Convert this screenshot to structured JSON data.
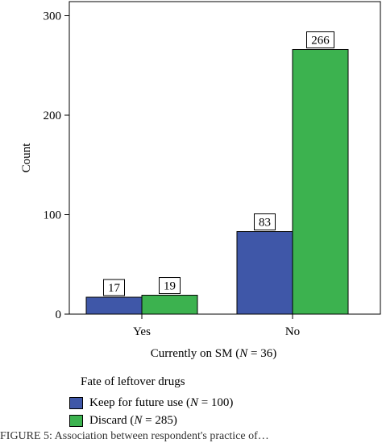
{
  "chart_data": {
    "type": "bar",
    "categories": [
      "Yes",
      "No"
    ],
    "series": [
      {
        "name": "Keep for future use (N = 100)",
        "label_main": "Keep for future use (",
        "label_n": "N",
        "label_rest": " = 100)",
        "values": [
          17,
          83
        ],
        "color": "#3f57a8"
      },
      {
        "name": "Discard (N = 285)",
        "label_main": "Discard (",
        "label_n": "N",
        "label_rest": " = 285)",
        "values": [
          19,
          266
        ],
        "color": "#3cb24f"
      }
    ],
    "xlabel_main": "Currently on SM (",
    "xlabel_n": "N",
    "xlabel_rest": " = 36)",
    "ylabel": "Count",
    "ylim": [
      0,
      310
    ],
    "yticks": [
      0,
      100,
      200,
      300
    ],
    "legend_title": "Fate of leftover drugs",
    "legend_position": "bottom-left"
  },
  "caption": "FIGURE 5: Association between respondent's practice of…"
}
